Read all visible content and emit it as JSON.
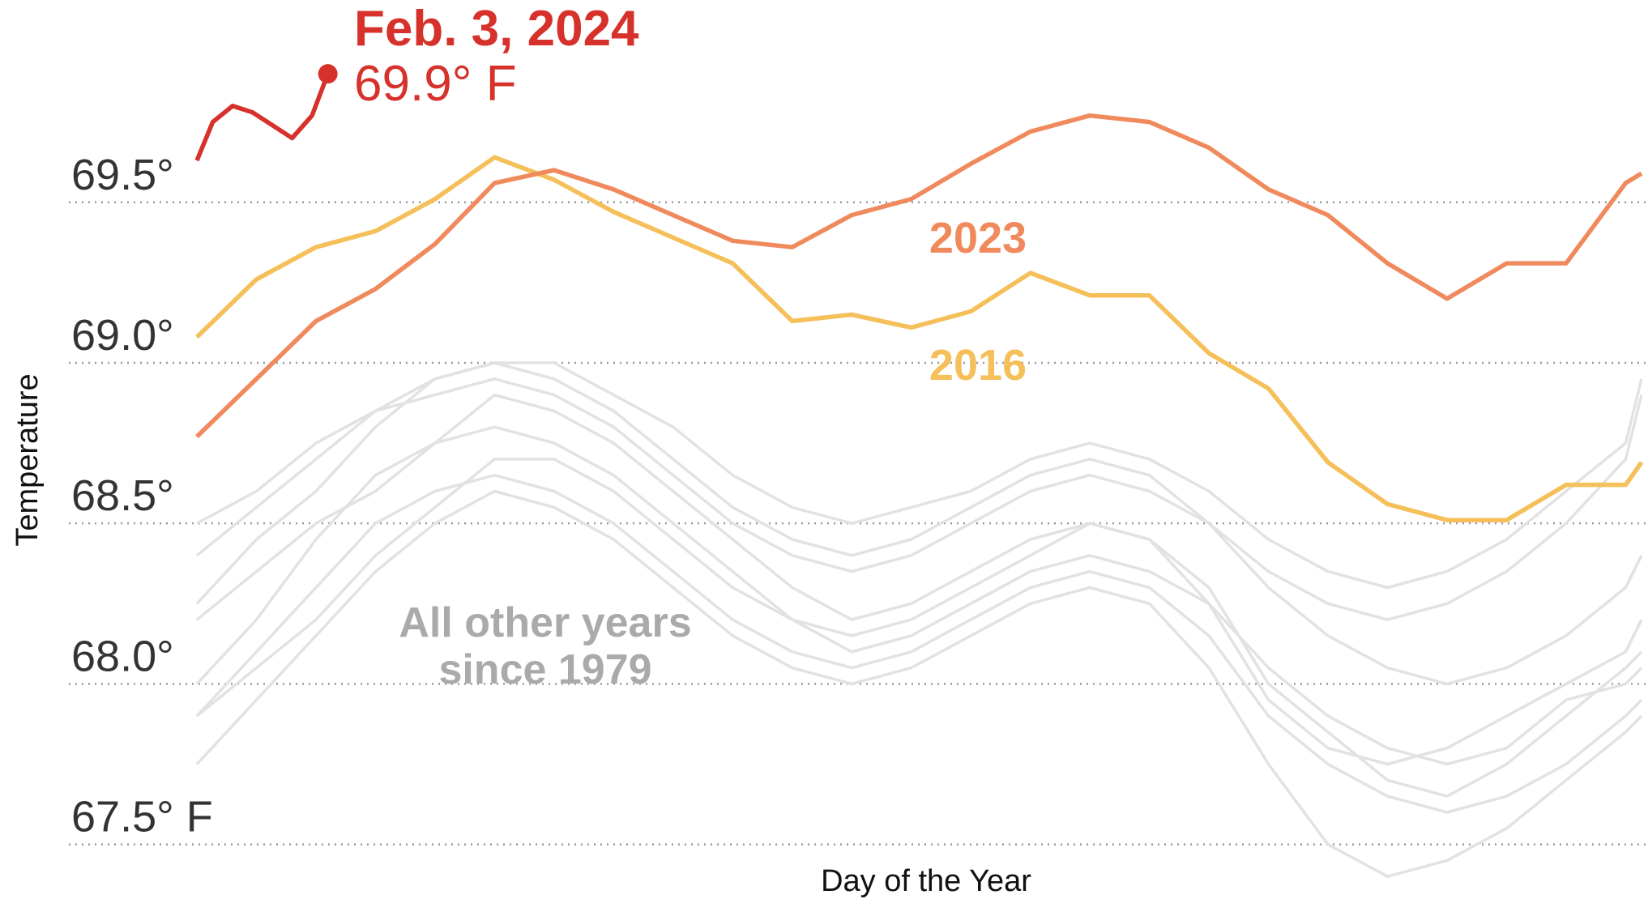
{
  "chart_data": {
    "type": "line",
    "x_label": "Day of the Year",
    "y_label": "Temperature",
    "xlim": [
      1,
      365
    ],
    "ylim": [
      67.33,
      70.13
    ],
    "yticks": [
      {
        "value": 69.5,
        "label": "69.5°"
      },
      {
        "value": 69.0,
        "label": "69.0°"
      },
      {
        "value": 68.5,
        "label": "68.5°"
      },
      {
        "value": 68.0,
        "label": "68.0°"
      },
      {
        "value": 67.5,
        "label": "67.5° F"
      }
    ],
    "grid": true,
    "x": [
      1,
      16,
      31,
      46,
      61,
      76,
      91,
      106,
      121,
      136,
      151,
      166,
      181,
      196,
      211,
      226,
      241,
      256,
      271,
      286,
      301,
      316,
      331,
      346,
      361,
      365
    ],
    "other_years": {
      "label_lines": [
        "All other years",
        "since 1979"
      ],
      "color": "#e2e2e2",
      "series": [
        {
          "values": [
            68.25,
            68.45,
            68.6,
            68.8,
            68.95,
            69.0,
            68.95,
            68.85,
            68.7,
            68.55,
            68.45,
            68.4,
            68.45,
            68.55,
            68.65,
            68.7,
            68.65,
            68.5,
            68.3,
            68.15,
            68.05,
            68.0,
            68.05,
            68.15,
            68.3,
            68.4
          ]
        },
        {
          "values": [
            67.9,
            68.1,
            68.3,
            68.5,
            68.6,
            68.65,
            68.6,
            68.5,
            68.35,
            68.2,
            68.1,
            68.05,
            68.1,
            68.2,
            68.3,
            68.35,
            68.3,
            68.15,
            67.9,
            67.75,
            67.65,
            67.6,
            67.65,
            67.75,
            67.9,
            67.95
          ]
        },
        {
          "values": [
            68.0,
            68.2,
            68.45,
            68.65,
            68.75,
            68.9,
            68.85,
            68.75,
            68.6,
            68.45,
            68.3,
            68.2,
            68.25,
            68.35,
            68.45,
            68.5,
            68.45,
            68.3,
            68.0,
            67.85,
            67.7,
            67.65,
            67.75,
            67.9,
            68.05,
            68.1
          ]
        },
        {
          "values": [
            68.4,
            68.55,
            68.7,
            68.85,
            68.9,
            68.95,
            68.9,
            68.8,
            68.65,
            68.5,
            68.4,
            68.35,
            68.4,
            68.5,
            68.6,
            68.65,
            68.6,
            68.5,
            68.35,
            68.25,
            68.2,
            68.25,
            68.35,
            68.5,
            68.7,
            68.9
          ]
        },
        {
          "values": [
            67.75,
            67.95,
            68.15,
            68.35,
            68.5,
            68.6,
            68.55,
            68.45,
            68.3,
            68.15,
            68.05,
            68.0,
            68.05,
            68.15,
            68.25,
            68.3,
            68.25,
            68.05,
            67.75,
            67.5,
            67.4,
            67.45,
            67.55,
            67.7,
            67.85,
            67.9
          ]
        },
        {
          "values": [
            68.2,
            68.35,
            68.5,
            68.6,
            68.75,
            68.8,
            68.75,
            68.65,
            68.5,
            68.35,
            68.2,
            68.1,
            68.15,
            68.25,
            68.35,
            68.4,
            68.35,
            68.25,
            68.05,
            67.9,
            67.8,
            67.75,
            67.8,
            67.95,
            68.0,
            68.05
          ]
        },
        {
          "values": [
            67.9,
            68.05,
            68.2,
            68.4,
            68.55,
            68.7,
            68.7,
            68.6,
            68.45,
            68.3,
            68.2,
            68.15,
            68.2,
            68.3,
            68.4,
            68.5,
            68.45,
            68.25,
            67.95,
            67.8,
            67.75,
            67.8,
            67.9,
            68.0,
            68.1,
            68.2
          ]
        },
        {
          "values": [
            68.5,
            68.6,
            68.75,
            68.85,
            68.95,
            69.0,
            69.0,
            68.9,
            68.8,
            68.65,
            68.55,
            68.5,
            68.55,
            68.6,
            68.7,
            68.75,
            68.7,
            68.6,
            68.45,
            68.35,
            68.3,
            68.35,
            68.45,
            68.6,
            68.75,
            68.95
          ]
        }
      ]
    },
    "series": [
      {
        "name": "2016",
        "color": "#f5bf5a",
        "values": [
          69.08,
          69.26,
          69.36,
          69.41,
          69.51,
          69.64,
          69.57,
          69.47,
          69.39,
          69.31,
          69.13,
          69.15,
          69.11,
          69.16,
          69.28,
          69.21,
          69.21,
          69.03,
          68.92,
          68.69,
          68.56,
          68.51,
          68.51,
          68.62,
          68.62,
          68.69
        ]
      },
      {
        "name": "2023",
        "color": "#f08a5d",
        "values": [
          68.77,
          68.95,
          69.13,
          69.23,
          69.37,
          69.56,
          69.6,
          69.54,
          69.46,
          69.38,
          69.36,
          69.46,
          69.51,
          69.62,
          69.72,
          69.77,
          69.75,
          69.67,
          69.54,
          69.46,
          69.31,
          69.2,
          69.31,
          69.31,
          69.56,
          69.59
        ]
      },
      {
        "date_label": "Feb. 3, 2024",
        "value_label": "69.9° F",
        "color": "#d6312a",
        "x": [
          1,
          5,
          10,
          15,
          20,
          25,
          30,
          34
        ],
        "values": [
          69.63,
          69.75,
          69.8,
          69.78,
          69.74,
          69.7,
          69.77,
          69.9
        ]
      }
    ]
  }
}
